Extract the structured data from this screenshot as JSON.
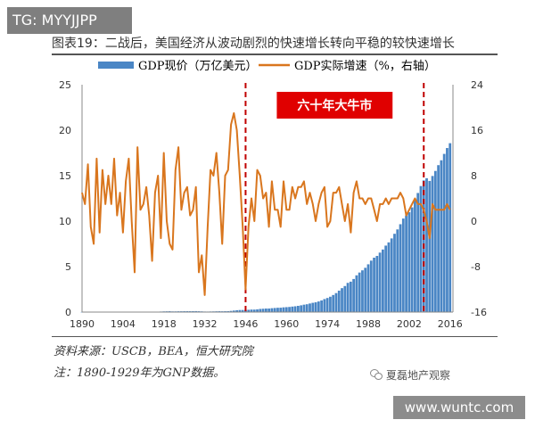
{
  "tg_badge": "TG: MYYJJPP",
  "figure_title": "图表19：二战后，美国经济从波动剧烈的快速增长转向平稳的较快速增长",
  "source_note": "资料来源：USCB，BEA，恒大研究院",
  "footnote": "注：1890-1929年为GNP数据。",
  "wechat_label": "夏磊地产观察",
  "watermark": "www.wuntc.com",
  "colors": {
    "bar": "#4a86c5",
    "line": "#d9761e",
    "vline": "#c00000",
    "annotation_bg": "#e00000",
    "annotation_text": "#ffffff"
  },
  "chart_data": {
    "type": "bar",
    "title": "",
    "x_tick_labels": [
      "1890",
      "1904",
      "1918",
      "1932",
      "1946",
      "1960",
      "1974",
      "1988",
      "2002",
      "2016"
    ],
    "xlim": [
      1890,
      2017
    ],
    "left_ylim": [
      0,
      25
    ],
    "left_ticks": [
      "0",
      "5",
      "10",
      "15",
      "20",
      "25"
    ],
    "right_ylim": [
      -16,
      24
    ],
    "right_ticks": [
      "-16",
      "-8",
      "0",
      "8",
      "16",
      "24"
    ],
    "legend": [
      "GDP现价（万亿美元）",
      "GDP实际增速（%，右轴）"
    ],
    "legend_position": "top",
    "annotation": "六十年大牛市",
    "vertical_markers": [
      1946,
      2007
    ],
    "series": [
      {
        "name": "GDP现价（万亿美元）",
        "axis": "left",
        "years": [
          1890,
          1891,
          1892,
          1893,
          1894,
          1895,
          1896,
          1897,
          1898,
          1899,
          1900,
          1901,
          1902,
          1903,
          1904,
          1905,
          1906,
          1907,
          1908,
          1909,
          1910,
          1911,
          1912,
          1913,
          1914,
          1915,
          1916,
          1917,
          1918,
          1919,
          1920,
          1921,
          1922,
          1923,
          1924,
          1925,
          1926,
          1927,
          1928,
          1929,
          1930,
          1931,
          1932,
          1933,
          1934,
          1935,
          1936,
          1937,
          1938,
          1939,
          1940,
          1941,
          1942,
          1943,
          1944,
          1945,
          1946,
          1947,
          1948,
          1949,
          1950,
          1951,
          1952,
          1953,
          1954,
          1955,
          1956,
          1957,
          1958,
          1959,
          1960,
          1961,
          1962,
          1963,
          1964,
          1965,
          1966,
          1967,
          1968,
          1969,
          1970,
          1971,
          1972,
          1973,
          1974,
          1975,
          1976,
          1977,
          1978,
          1979,
          1980,
          1981,
          1982,
          1983,
          1984,
          1985,
          1986,
          1987,
          1988,
          1989,
          1990,
          1991,
          1992,
          1993,
          1994,
          1995,
          1996,
          1997,
          1998,
          1999,
          2000,
          2001,
          2002,
          2003,
          2004,
          2005,
          2006,
          2007,
          2008,
          2009,
          2010,
          2011,
          2012,
          2013,
          2014,
          2015,
          2016
        ],
        "values": [
          0.013,
          0.013,
          0.014,
          0.013,
          0.012,
          0.013,
          0.013,
          0.014,
          0.015,
          0.017,
          0.019,
          0.021,
          0.022,
          0.023,
          0.023,
          0.025,
          0.028,
          0.03,
          0.027,
          0.031,
          0.033,
          0.034,
          0.037,
          0.039,
          0.037,
          0.04,
          0.048,
          0.06,
          0.076,
          0.084,
          0.092,
          0.074,
          0.075,
          0.086,
          0.088,
          0.093,
          0.097,
          0.095,
          0.098,
          0.105,
          0.092,
          0.077,
          0.06,
          0.057,
          0.067,
          0.074,
          0.084,
          0.093,
          0.087,
          0.093,
          0.103,
          0.129,
          0.166,
          0.203,
          0.225,
          0.229,
          0.228,
          0.25,
          0.275,
          0.273,
          0.3,
          0.347,
          0.368,
          0.389,
          0.391,
          0.426,
          0.45,
          0.474,
          0.482,
          0.522,
          0.543,
          0.563,
          0.605,
          0.639,
          0.686,
          0.744,
          0.815,
          0.862,
          0.943,
          1.02,
          1.075,
          1.168,
          1.282,
          1.429,
          1.549,
          1.689,
          1.878,
          2.086,
          2.357,
          2.632,
          2.863,
          3.211,
          3.345,
          3.638,
          4.041,
          4.347,
          4.59,
          4.87,
          5.253,
          5.658,
          5.98,
          6.174,
          6.539,
          6.879,
          7.309,
          7.664,
          8.1,
          8.609,
          9.089,
          9.661,
          10.285,
          10.622,
          10.978,
          11.511,
          12.275,
          13.094,
          13.856,
          14.478,
          14.719,
          14.419,
          14.964,
          15.518,
          16.155,
          16.692,
          17.393,
          18.037,
          18.569
        ]
      },
      {
        "name": "GDP实际增速（%，右轴）",
        "axis": "right",
        "years": [
          1890,
          1891,
          1892,
          1893,
          1894,
          1895,
          1896,
          1897,
          1898,
          1899,
          1900,
          1901,
          1902,
          1903,
          1904,
          1905,
          1906,
          1907,
          1908,
          1909,
          1910,
          1911,
          1912,
          1913,
          1914,
          1915,
          1916,
          1917,
          1918,
          1919,
          1920,
          1921,
          1922,
          1923,
          1924,
          1925,
          1926,
          1927,
          1928,
          1929,
          1930,
          1931,
          1932,
          1933,
          1934,
          1935,
          1936,
          1937,
          1938,
          1939,
          1940,
          1941,
          1942,
          1943,
          1944,
          1945,
          1946,
          1947,
          1948,
          1949,
          1950,
          1951,
          1952,
          1953,
          1954,
          1955,
          1956,
          1957,
          1958,
          1959,
          1960,
          1961,
          1962,
          1963,
          1964,
          1965,
          1966,
          1967,
          1968,
          1969,
          1970,
          1971,
          1972,
          1973,
          1974,
          1975,
          1976,
          1977,
          1978,
          1979,
          1980,
          1981,
          1982,
          1983,
          1984,
          1985,
          1986,
          1987,
          1988,
          1989,
          1990,
          1991,
          1992,
          1993,
          1994,
          1995,
          1996,
          1997,
          1998,
          1999,
          2000,
          2001,
          2002,
          2003,
          2004,
          2005,
          2006,
          2007,
          2008,
          2009,
          2010,
          2011,
          2012,
          2013,
          2014,
          2015,
          2016
        ],
        "values": [
          5,
          3,
          10,
          -1,
          -4,
          11,
          -2,
          9,
          3,
          8,
          3,
          11,
          1,
          5,
          -2,
          7,
          11,
          0,
          -9,
          13,
          2,
          3,
          6,
          1,
          -7,
          5,
          8,
          -3,
          12,
          0,
          -4,
          -5,
          9,
          13,
          2,
          5,
          6,
          1,
          2,
          6,
          -9,
          -6,
          -13,
          -1,
          9,
          8,
          12,
          5,
          -4,
          8,
          9,
          17,
          19,
          16,
          8,
          -1,
          -12,
          -1,
          4,
          0,
          9,
          8,
          4,
          5,
          -1,
          7,
          2,
          2,
          -1,
          7,
          2,
          2,
          6,
          4,
          6,
          6,
          7,
          3,
          5,
          3,
          0,
          3,
          5,
          6,
          -1,
          0,
          5,
          5,
          6,
          3,
          0,
          3,
          -2,
          5,
          7,
          4,
          4,
          3,
          4,
          4,
          2,
          0,
          3,
          3,
          4,
          3,
          4,
          4,
          4,
          5,
          4,
          1,
          2,
          3,
          4,
          3,
          3,
          2,
          0,
          -3,
          3,
          2,
          2,
          2,
          2,
          3,
          2
        ]
      }
    ]
  }
}
